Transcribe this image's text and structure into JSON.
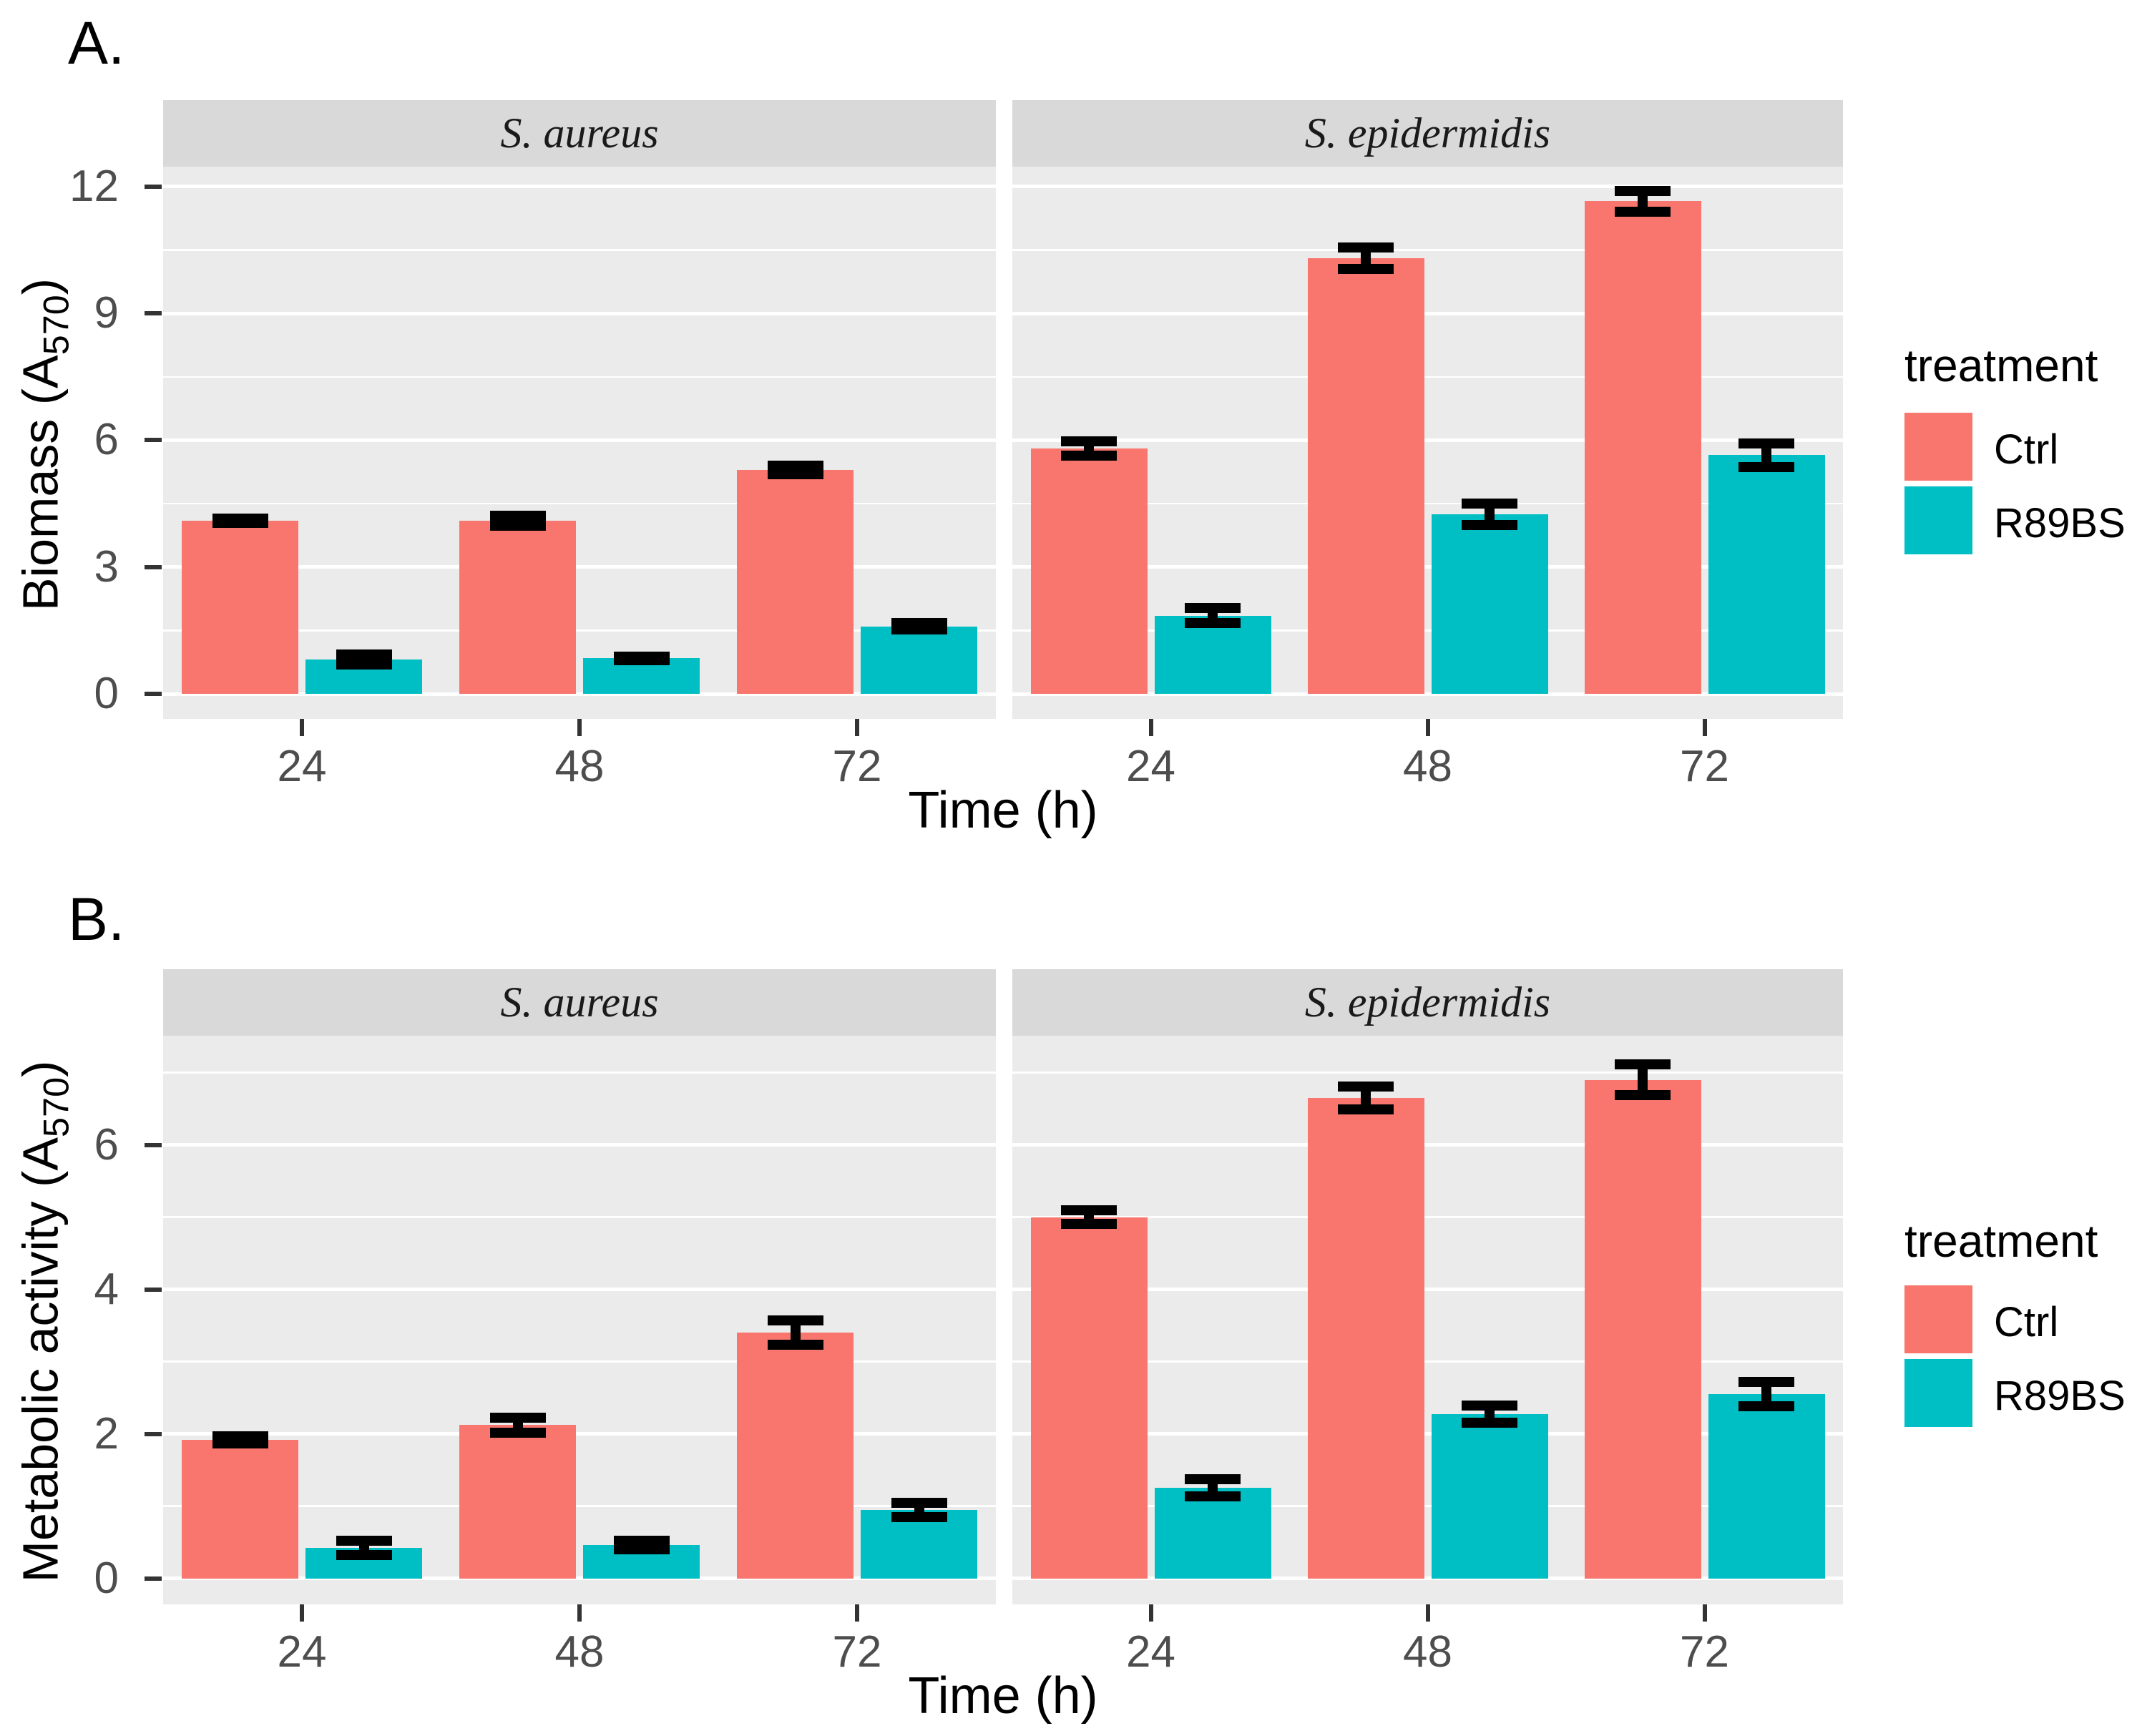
{
  "figure": {
    "background": "#FFFFFF"
  },
  "colors": {
    "ctrl": "#F8766D",
    "r89bs": "#00BFC4",
    "strip_bg": "#D9D9D9",
    "panel_bg": "#EBEBEB",
    "gridline": "#FFFFFF",
    "tick_label": "#4D4D4D",
    "axis_title": "#000000",
    "error_bar": "#000000",
    "tick_mark": "#333333",
    "facet_label": "#1A1A1A"
  },
  "legend": {
    "title": "treatment",
    "items": [
      {
        "label": "Ctrl",
        "color_key": "ctrl"
      },
      {
        "label": "R89BS",
        "color_key": "r89bs"
      }
    ]
  },
  "chart_data": [
    {
      "type": "bar",
      "panel_tag": "A.",
      "ylabel": "Biomass (A570)",
      "ylabel_parts": {
        "prefix": "Biomass (A",
        "sub": "570",
        "suffix": ")"
      },
      "xlabel": "Time (h)",
      "categories": [
        "24",
        "48",
        "72"
      ],
      "y_ticks": [
        0,
        3,
        6,
        9,
        12
      ],
      "y_minor_ticks": [
        1.5,
        4.5,
        7.5,
        10.5
      ],
      "ylim": [
        -0.59,
        12.47
      ],
      "grid": true,
      "legend_position": "right",
      "facets": [
        {
          "label": "S. aureus",
          "series": [
            {
              "name": "Ctrl",
              "values": [
                4.1,
                4.1,
                5.3
              ],
              "errors": [
                0.05,
                0.12,
                0.1
              ]
            },
            {
              "name": "R89BS",
              "values": [
                0.82,
                0.84,
                1.6
              ],
              "errors": [
                0.12,
                0.05,
                0.08
              ]
            }
          ]
        },
        {
          "label": "S. epidermidis",
          "series": [
            {
              "name": "Ctrl",
              "values": [
                5.8,
                10.3,
                11.65
              ],
              "errors": [
                0.17,
                0.25,
                0.25
              ]
            },
            {
              "name": "R89BS",
              "values": [
                1.85,
                4.25,
                5.65
              ],
              "errors": [
                0.18,
                0.25,
                0.28
              ]
            }
          ]
        }
      ]
    },
    {
      "type": "bar",
      "panel_tag": "B.",
      "ylabel": "Metabolic activity (A570)",
      "ylabel_parts": {
        "prefix": "Metabolic activity (A",
        "sub": "570",
        "suffix": ")"
      },
      "xlabel": "Time (h)",
      "categories": [
        "24",
        "48",
        "72"
      ],
      "y_ticks": [
        0,
        2,
        4,
        6
      ],
      "y_minor_ticks": [
        1,
        3,
        5,
        7
      ],
      "ylim": [
        -0.36,
        7.51
      ],
      "grid": true,
      "legend_position": "right",
      "facets": [
        {
          "label": "S. aureus",
          "series": [
            {
              "name": "Ctrl",
              "values": [
                1.92,
                2.12,
                3.4
              ],
              "errors": [
                0.05,
                0.1,
                0.17
              ]
            },
            {
              "name": "R89BS",
              "values": [
                0.42,
                0.46,
                0.95
              ],
              "errors": [
                0.1,
                0.06,
                0.1
              ]
            }
          ]
        },
        {
          "label": "S. epidermidis",
          "series": [
            {
              "name": "Ctrl",
              "values": [
                5.0,
                6.65,
                6.9
              ],
              "errors": [
                0.09,
                0.16,
                0.21
              ]
            },
            {
              "name": "R89BS",
              "values": [
                1.25,
                2.27,
                2.55
              ],
              "errors": [
                0.12,
                0.12,
                0.17
              ]
            }
          ]
        }
      ]
    }
  ]
}
